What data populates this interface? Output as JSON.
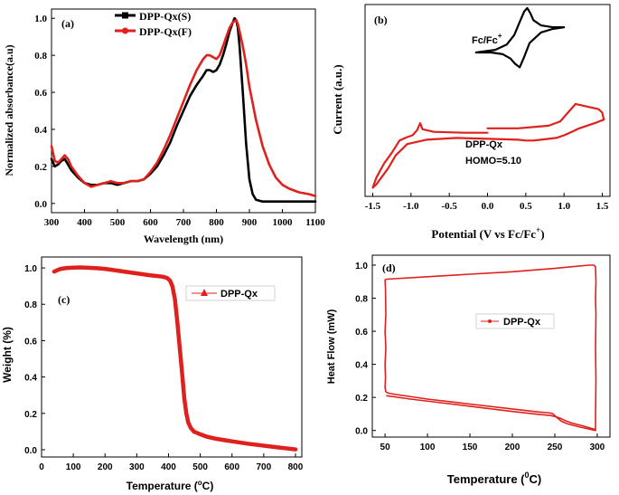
{
  "colors": {
    "black": "#000000",
    "red": "#e0201c"
  },
  "chart_data": [
    {
      "id": "a",
      "type": "line",
      "panel_label": "(a)",
      "xlabel": "Wavelength (nm)",
      "ylabel": "Normalized absorbance(a.u)",
      "xlim": [
        300,
        1100
      ],
      "ylim": [
        -0.05,
        1.05
      ],
      "xticks": [
        "300",
        "400",
        "500",
        "600",
        "700",
        "800",
        "900",
        "1000",
        "1100"
      ],
      "yticks": [
        "0.0",
        "0.2",
        "0.4",
        "0.6",
        "0.8",
        "1.0"
      ],
      "legend": [
        {
          "name": "DPP-Qx(S)",
          "color": "#000000",
          "marker": "square"
        },
        {
          "name": "DPP-Qx(F)",
          "color": "#e0201c",
          "marker": "circle"
        }
      ],
      "series": [
        {
          "name": "DPP-Qx(S)",
          "color": "#000000",
          "x": [
            300,
            310,
            320,
            330,
            340,
            350,
            360,
            380,
            400,
            420,
            440,
            460,
            480,
            500,
            520,
            540,
            560,
            580,
            600,
            620,
            640,
            660,
            680,
            700,
            720,
            740,
            760,
            770,
            780,
            790,
            800,
            810,
            820,
            830,
            840,
            850,
            855,
            860,
            865,
            870,
            880,
            890,
            900,
            910,
            920,
            940,
            960,
            1000,
            1050,
            1100
          ],
          "y": [
            0.24,
            0.2,
            0.21,
            0.23,
            0.24,
            0.21,
            0.18,
            0.14,
            0.11,
            0.1,
            0.1,
            0.11,
            0.11,
            0.1,
            0.11,
            0.12,
            0.12,
            0.13,
            0.16,
            0.2,
            0.26,
            0.33,
            0.42,
            0.5,
            0.58,
            0.64,
            0.69,
            0.72,
            0.72,
            0.71,
            0.72,
            0.75,
            0.8,
            0.86,
            0.93,
            0.98,
            1.0,
            0.99,
            0.95,
            0.85,
            0.6,
            0.32,
            0.13,
            0.05,
            0.02,
            0.01,
            0.01,
            0.01,
            0.01,
            0.01
          ]
        },
        {
          "name": "DPP-Qx(F)",
          "color": "#e0201c",
          "x": [
            300,
            310,
            320,
            330,
            340,
            350,
            360,
            380,
            400,
            420,
            440,
            460,
            480,
            500,
            520,
            540,
            560,
            580,
            600,
            620,
            640,
            660,
            680,
            700,
            720,
            740,
            760,
            770,
            780,
            790,
            800,
            810,
            820,
            830,
            840,
            850,
            860,
            865,
            870,
            880,
            890,
            900,
            920,
            940,
            960,
            980,
            1000,
            1020,
            1050,
            1080,
            1100
          ],
          "y": [
            0.31,
            0.23,
            0.22,
            0.24,
            0.26,
            0.24,
            0.2,
            0.15,
            0.11,
            0.09,
            0.1,
            0.11,
            0.12,
            0.11,
            0.11,
            0.12,
            0.12,
            0.13,
            0.17,
            0.22,
            0.29,
            0.37,
            0.46,
            0.55,
            0.64,
            0.72,
            0.78,
            0.8,
            0.8,
            0.79,
            0.78,
            0.8,
            0.85,
            0.9,
            0.95,
            0.98,
            0.99,
            0.97,
            0.93,
            0.85,
            0.75,
            0.63,
            0.45,
            0.31,
            0.21,
            0.14,
            0.1,
            0.08,
            0.06,
            0.05,
            0.04
          ]
        }
      ]
    },
    {
      "id": "b",
      "type": "line",
      "panel_label": "(b)",
      "xlabel": "Potential (V vs Fc/Fc",
      "xlabel_sup": "+",
      "xlabel_end": ")",
      "ylabel": "Current (a.u.)",
      "xlim": [
        -1.6,
        1.6
      ],
      "ylim": [
        -1.1,
        1.1
      ],
      "xticks": [
        "-1.5",
        "-1.0",
        "-0.5",
        "0.0",
        "0.5",
        "1.0",
        "1.5"
      ],
      "annotations": {
        "fc_label": "Fc/Fc",
        "fc_sup": "+",
        "sample_name": "DPP-Qx",
        "homo_text": "HOMO=5.10"
      },
      "series": [
        {
          "name": "DPP-Qx",
          "color": "#e0201c",
          "x": [
            0.0,
            0.4,
            0.8,
            0.95,
            1.05,
            1.15,
            1.25,
            1.35,
            1.45,
            1.5,
            1.52,
            1.4,
            1.3,
            1.2,
            1.1,
            1.0,
            0.9,
            0.8,
            0.7,
            0.6,
            0.5,
            0.4,
            0.0,
            -0.4,
            -0.8,
            -0.95,
            -1.05,
            -1.2,
            -1.3,
            -1.4,
            -1.45,
            -1.5,
            -1.45,
            -1.35,
            -1.25,
            -1.15,
            -1.05,
            -0.98,
            -0.92,
            -0.88,
            -0.85,
            -0.7,
            -0.3,
            0.0
          ],
          "y": [
            -0.32,
            -0.32,
            -0.29,
            -0.24,
            -0.14,
            -0.04,
            -0.06,
            -0.08,
            -0.1,
            -0.14,
            -0.22,
            -0.26,
            -0.29,
            -0.32,
            -0.36,
            -0.4,
            -0.43,
            -0.44,
            -0.45,
            -0.46,
            -0.46,
            -0.45,
            -0.44,
            -0.43,
            -0.45,
            -0.48,
            -0.5,
            -0.63,
            -0.78,
            -0.9,
            -0.96,
            -1.0,
            -0.88,
            -0.72,
            -0.6,
            -0.46,
            -0.42,
            -0.4,
            -0.34,
            -0.26,
            -0.33,
            -0.36,
            -0.37,
            -0.37
          ]
        },
        {
          "name": "Fc/Fc+",
          "color": "#000000",
          "x": [
            -0.15,
            0.1,
            0.25,
            0.35,
            0.42,
            0.48,
            0.52,
            0.56,
            0.6,
            0.7,
            0.85,
            1.0,
            0.85,
            0.7,
            0.55,
            0.48,
            0.42,
            0.36,
            0.3,
            0.2,
            0.05,
            -0.15
          ],
          "y": [
            0.55,
            0.58,
            0.64,
            0.75,
            0.9,
            1.02,
            1.06,
            1.0,
            0.92,
            0.86,
            0.84,
            0.84,
            0.82,
            0.78,
            0.66,
            0.5,
            0.38,
            0.42,
            0.48,
            0.53,
            0.55,
            0.55
          ]
        }
      ]
    },
    {
      "id": "c",
      "type": "line",
      "panel_label": "(c)",
      "xlabel": "Temperature (",
      "xlabel_sup": "o",
      "xlabel_end": "C)",
      "ylabel": "Weight (%)",
      "xlim": [
        0,
        820
      ],
      "ylim": [
        -0.04,
        1.06
      ],
      "xticks": [
        "0",
        "100",
        "200",
        "300",
        "400",
        "500",
        "600",
        "700",
        "800"
      ],
      "yticks": [
        "0.0",
        "0.2",
        "0.4",
        "0.6",
        "0.8",
        "1.0"
      ],
      "legend": [
        {
          "name": "DPP-Qx",
          "color": "#e0201c",
          "marker": "triangle"
        }
      ],
      "series": [
        {
          "name": "DPP-Qx",
          "color": "#e0201c",
          "x": [
            40,
            60,
            80,
            100,
            120,
            140,
            160,
            180,
            200,
            220,
            240,
            260,
            280,
            300,
            320,
            340,
            360,
            380,
            395,
            405,
            412,
            420,
            428,
            436,
            444,
            450,
            456,
            462,
            470,
            480,
            500,
            520,
            550,
            600,
            650,
            700,
            750,
            780,
            800
          ],
          "y": [
            0.98,
            0.995,
            1.0,
            1.002,
            1.003,
            1.002,
            1.0,
            0.998,
            0.995,
            0.99,
            0.985,
            0.98,
            0.975,
            0.97,
            0.965,
            0.96,
            0.956,
            0.952,
            0.945,
            0.93,
            0.9,
            0.83,
            0.7,
            0.55,
            0.4,
            0.28,
            0.2,
            0.15,
            0.12,
            0.1,
            0.085,
            0.072,
            0.06,
            0.046,
            0.033,
            0.022,
            0.012,
            0.006,
            0.002
          ]
        }
      ]
    },
    {
      "id": "d",
      "type": "line",
      "panel_label": "(d)",
      "xlabel": "Temperature (",
      "xlabel_sup": "0",
      "xlabel_end": "C)",
      "ylabel": "Heat Flow (mW)",
      "xlim": [
        35,
        315
      ],
      "ylim": [
        -0.04,
        1.06
      ],
      "xticks": [
        "50",
        "100",
        "150",
        "200",
        "250",
        "300"
      ],
      "yticks": [
        "0.0",
        "0.2",
        "0.4",
        "0.6",
        "0.8",
        "1.0"
      ],
      "legend": [
        {
          "name": "DPP-Qx",
          "color": "#e0201c",
          "marker": "dot"
        }
      ],
      "series": [
        {
          "name": "DPP-Qx",
          "color": "#e0201c",
          "x": [
            50,
            50.5,
            51,
            50,
            51,
            50,
            50.5,
            50,
            51,
            52,
            55,
            60,
            100,
            150,
            200,
            230,
            240,
            245,
            248,
            252,
            258,
            265,
            280,
            298,
            298,
            298.5,
            298,
            298.5,
            298,
            298.5,
            298,
            296,
            290,
            250,
            200,
            150,
            100,
            52,
            51,
            50
          ],
          "y": [
            0.91,
            0.85,
            0.7,
            0.6,
            0.5,
            0.4,
            0.32,
            0.26,
            0.235,
            0.23,
            0.225,
            0.22,
            0.19,
            0.16,
            0.13,
            0.112,
            0.108,
            0.105,
            0.1,
            0.08,
            0.055,
            0.04,
            0.02,
            0.0,
            0.1,
            0.3,
            0.5,
            0.7,
            0.8,
            0.9,
            0.99,
            1.0,
            1.0,
            0.98,
            0.96,
            0.945,
            0.93,
            0.915,
            0.912,
            0.91
          ]
        },
        {
          "name": "DPP-Qx-cool",
          "color": "#e0201c",
          "x": [
            52,
            80,
            120,
            160,
            200,
            230,
            245,
            250,
            256,
            262,
            270,
            285,
            298
          ],
          "y": [
            0.21,
            0.19,
            0.165,
            0.14,
            0.115,
            0.098,
            0.09,
            0.085,
            0.075,
            0.06,
            0.045,
            0.025,
            0.005
          ]
        }
      ]
    }
  ]
}
